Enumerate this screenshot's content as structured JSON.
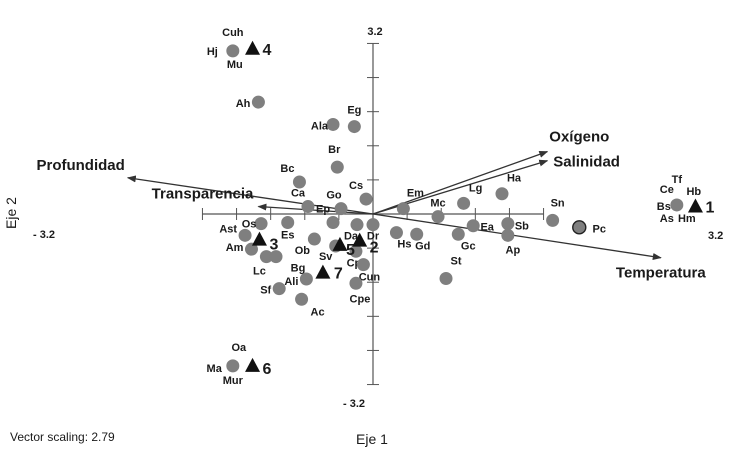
{
  "chart_data": {
    "type": "scatter",
    "title": "",
    "xlabel": "Eje 1",
    "ylabel": "Eje 2",
    "xlim": [
      -3.2,
      3.2
    ],
    "ylim": [
      -3.2,
      3.2
    ],
    "tick_labels": {
      "xmin": "- 3.2",
      "xmax": "3.2",
      "ymax": "3.2",
      "ymin": "- 3.2"
    },
    "grid": false,
    "vector_scaling": "Vector scaling: 2.79",
    "species": [
      {
        "label": "Cuh",
        "x": -2.63,
        "y": 3.06
      },
      {
        "label": "Hj",
        "x": -2.63,
        "y": 3.06
      },
      {
        "label": "Mu",
        "x": -2.63,
        "y": 3.06
      },
      {
        "label": "Ah",
        "x": -2.15,
        "y": 2.1
      },
      {
        "label": "Ala",
        "x": -0.75,
        "y": 1.68
      },
      {
        "label": "Eg",
        "x": -0.35,
        "y": 1.64
      },
      {
        "label": "Br",
        "x": -0.67,
        "y": 0.88
      },
      {
        "label": "Bc",
        "x": -1.38,
        "y": 0.6
      },
      {
        "label": "Cs",
        "x": -0.13,
        "y": 0.28
      },
      {
        "label": "Ca",
        "x": -1.22,
        "y": 0.14
      },
      {
        "label": "Go",
        "x": -0.6,
        "y": 0.1
      },
      {
        "label": "Em",
        "x": 0.57,
        "y": 0.1
      },
      {
        "label": "Lg",
        "x": 1.7,
        "y": 0.2
      },
      {
        "label": "Ha",
        "x": 2.42,
        "y": 0.38
      },
      {
        "label": "Os",
        "x": -2.1,
        "y": -0.18
      },
      {
        "label": "Ep",
        "x": -0.75,
        "y": -0.16
      },
      {
        "label": "Mc",
        "x": 1.22,
        "y": -0.05
      },
      {
        "label": "Sn",
        "x": 3.37,
        "y": -0.12
      },
      {
        "label": "Es",
        "x": -1.6,
        "y": -0.16
      },
      {
        "label": "Ast",
        "x": -2.4,
        "y": -0.4
      },
      {
        "label": "Ob",
        "x": -1.1,
        "y": -0.47
      },
      {
        "label": "Da",
        "x": -0.3,
        "y": -0.2
      },
      {
        "label": "Dr",
        "x": 0.0,
        "y": -0.2
      },
      {
        "label": "Ea",
        "x": 1.88,
        "y": -0.22
      },
      {
        "label": "Sb",
        "x": 2.53,
        "y": -0.18
      },
      {
        "label": "Pc",
        "x": 3.87,
        "y": -0.25
      },
      {
        "label": "Am",
        "x": -2.28,
        "y": -0.66
      },
      {
        "label": "Sv",
        "x": -0.7,
        "y": -0.6
      },
      {
        "label": "Hs",
        "x": 0.44,
        "y": -0.35
      },
      {
        "label": "Gd",
        "x": 0.82,
        "y": -0.38
      },
      {
        "label": "Gc",
        "x": 1.6,
        "y": -0.38
      },
      {
        "label": "Lc",
        "x": -2.0,
        "y": -0.8
      },
      {
        "label": "Bg",
        "x": -1.82,
        "y": -0.8
      },
      {
        "label": "Ap",
        "x": 2.53,
        "y": -0.4
      },
      {
        "label": "Cp",
        "x": -0.32,
        "y": -0.7
      },
      {
        "label": "Cun",
        "x": -0.18,
        "y": -0.95
      },
      {
        "label": "Ali",
        "x": -1.25,
        "y": -1.22
      },
      {
        "label": "Cpe",
        "x": -0.32,
        "y": -1.3
      },
      {
        "label": "Sf",
        "x": -1.76,
        "y": -1.4
      },
      {
        "label": "Ac",
        "x": -1.34,
        "y": -1.6
      },
      {
        "label": "St",
        "x": 1.37,
        "y": -1.21
      },
      {
        "label": "Ce",
        "x": 5.7,
        "y": 0.17
      },
      {
        "label": "Tf",
        "x": 5.7,
        "y": 0.17
      },
      {
        "label": "Hb",
        "x": 5.7,
        "y": 0.17
      },
      {
        "label": "Bs",
        "x": 5.7,
        "y": 0.17
      },
      {
        "label": "As",
        "x": 5.7,
        "y": 0.17
      },
      {
        "label": "Hm",
        "x": 5.7,
        "y": 0.17
      },
      {
        "label": "Oa",
        "x": -2.63,
        "y": -2.85
      },
      {
        "label": "Ma",
        "x": -2.63,
        "y": -2.85
      },
      {
        "label": "Mur",
        "x": -2.63,
        "y": -2.85
      }
    ],
    "stations": [
      {
        "label": "1",
        "x": 6.05,
        "y": 0.14
      },
      {
        "label": "2",
        "x": -0.25,
        "y": -0.5
      },
      {
        "label": "3",
        "x": -2.13,
        "y": -0.48
      },
      {
        "label": "4",
        "x": -2.26,
        "y": 3.1
      },
      {
        "label": "5",
        "x": -0.62,
        "y": -0.58
      },
      {
        "label": "6",
        "x": -2.26,
        "y": -2.85
      },
      {
        "label": "7",
        "x": -0.94,
        "y": -1.1
      }
    ],
    "vectors": [
      {
        "label": "Oxígeno",
        "x": 3.27,
        "y": 1.17
      },
      {
        "label": "Salinidad",
        "x": 3.27,
        "y": 1.0
      },
      {
        "label": "Temperatura",
        "x": 5.4,
        "y": -0.82
      },
      {
        "label": "Profundidad",
        "x": -4.6,
        "y": 0.68
      },
      {
        "label": "Transparencia",
        "x": -2.15,
        "y": 0.14
      }
    ]
  }
}
